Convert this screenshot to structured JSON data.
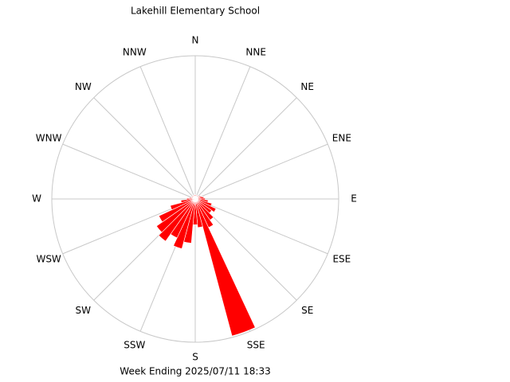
{
  "chart_data": {
    "type": "windrose",
    "title": "Lakehill Elementary School",
    "subtitle": "Week Ending 2025/07/11 18:33",
    "direction_labels": [
      "N",
      "NNE",
      "NE",
      "ENE",
      "E",
      "ESE",
      "SE",
      "SSE",
      "S",
      "SSW",
      "SW",
      "WSW",
      "W",
      "WNW",
      "NW",
      "NNW"
    ],
    "x": [
      0,
      10,
      20,
      30,
      40,
      50,
      60,
      70,
      80,
      90,
      100,
      110,
      120,
      130,
      140,
      150,
      160,
      170,
      180,
      190,
      200,
      210,
      220,
      230,
      240,
      250,
      260,
      270,
      280,
      290,
      300,
      310,
      320,
      330,
      340,
      350
    ],
    "values": [
      3,
      3,
      2,
      3,
      2,
      3,
      4,
      5,
      6,
      7,
      9,
      12,
      16,
      14,
      18,
      22,
      99,
      20,
      18,
      31,
      36,
      30,
      36,
      33,
      28,
      18,
      10,
      6,
      4,
      3,
      3,
      2,
      3,
      2,
      3,
      3
    ],
    "color": "#ff0000",
    "ylim": [
      0,
      100
    ]
  }
}
